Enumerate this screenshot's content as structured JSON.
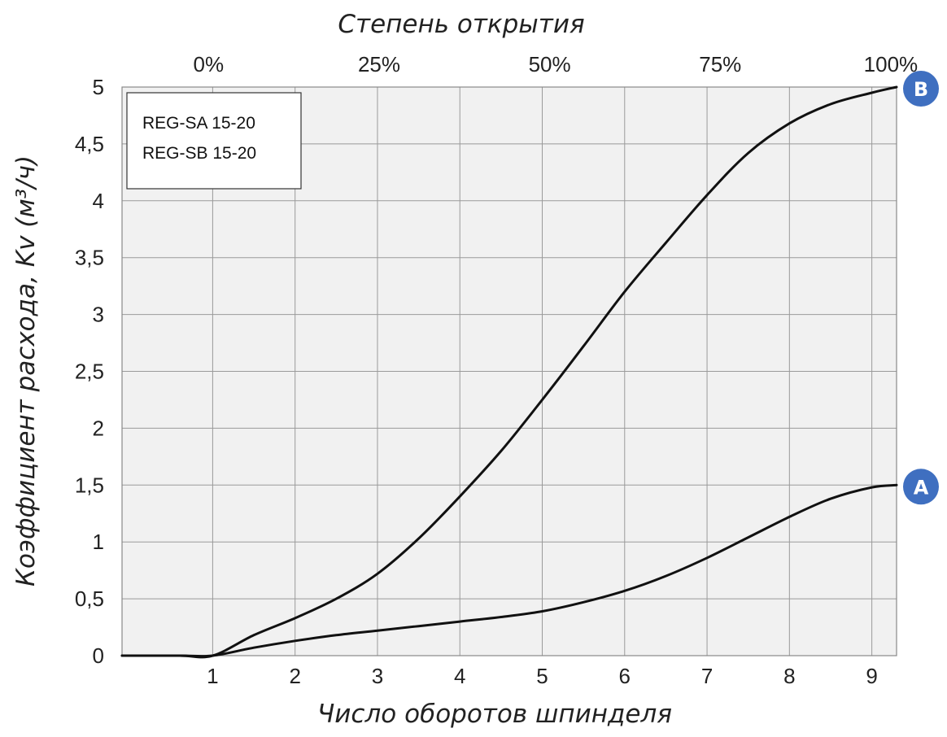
{
  "chart_data": {
    "type": "line",
    "title": "",
    "xlabel": "Число оборотов шпинделя",
    "ylabel": "Коэффициент расхода, Kv (м³/ч)",
    "x2label": "Степень открытия",
    "xlim": [
      -0.1,
      9.3
    ],
    "ylim": [
      0,
      5
    ],
    "grid": true,
    "x_ticks": [
      1,
      2,
      3,
      4,
      5,
      6,
      7,
      8,
      9
    ],
    "x_tick_labels": [
      "1",
      "2",
      "3",
      "4",
      "5",
      "6",
      "7",
      "8",
      "9"
    ],
    "y_ticks": [
      0,
      0.5,
      1,
      1.5,
      2,
      2.5,
      3,
      3.5,
      4,
      4.5,
      5
    ],
    "y_tick_labels": [
      "0",
      "0,5",
      "1",
      "1,5",
      "2",
      "2,5",
      "3",
      "3,5",
      "4",
      "4,5",
      "5"
    ],
    "top_ticks": [
      0.95,
      3.02,
      5.09,
      7.16,
      9.23
    ],
    "top_tick_labels": [
      "0%",
      "25%",
      "50%",
      "75%",
      "100%"
    ],
    "legend": {
      "placement": "top-left",
      "lines": [
        "REG-SA 15-20",
        "REG-SB 15-20"
      ]
    },
    "series": [
      {
        "name": "B",
        "color": "#111111",
        "x": [
          -0.1,
          0.6,
          1.0,
          1.5,
          2.0,
          2.5,
          3.0,
          3.5,
          4.0,
          4.5,
          5.0,
          5.5,
          6.0,
          6.5,
          7.0,
          7.5,
          8.0,
          8.5,
          9.0,
          9.3
        ],
        "y": [
          0,
          0,
          0,
          0.18,
          0.33,
          0.5,
          0.72,
          1.03,
          1.4,
          1.8,
          2.25,
          2.72,
          3.2,
          3.63,
          4.05,
          4.42,
          4.68,
          4.85,
          4.95,
          5.0
        ]
      },
      {
        "name": "A",
        "color": "#111111",
        "x": [
          -0.1,
          0.6,
          1.0,
          1.5,
          2.0,
          2.5,
          3.0,
          3.5,
          4.0,
          4.5,
          5.0,
          5.5,
          6.0,
          6.5,
          7.0,
          7.5,
          8.0,
          8.5,
          9.0,
          9.3
        ],
        "y": [
          0,
          0,
          0,
          0.07,
          0.13,
          0.18,
          0.22,
          0.26,
          0.3,
          0.34,
          0.39,
          0.47,
          0.57,
          0.7,
          0.86,
          1.04,
          1.22,
          1.38,
          1.48,
          1.5
        ]
      }
    ],
    "markers": [
      {
        "label": "B",
        "series": "B",
        "color": "#3f6fc0"
      },
      {
        "label": "A",
        "series": "A",
        "color": "#3f6fc0"
      }
    ]
  }
}
